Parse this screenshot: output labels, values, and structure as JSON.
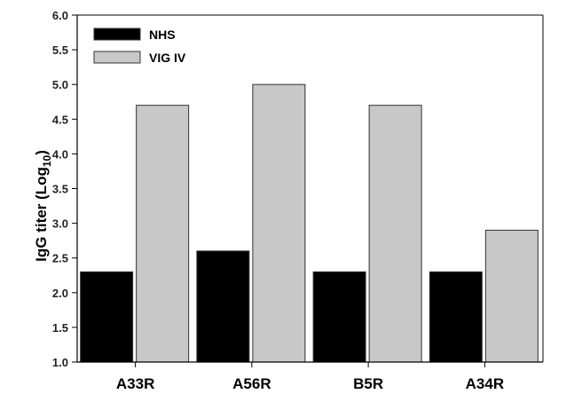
{
  "chart_data": {
    "type": "bar",
    "categories": [
      "A33R",
      "A56R",
      "B5R",
      "A34R"
    ],
    "series": [
      {
        "name": "NHS",
        "values": [
          2.3,
          2.6,
          2.3,
          2.3
        ],
        "color": "#000000"
      },
      {
        "name": "VIG IV",
        "values": [
          4.7,
          5.0,
          4.7,
          2.9
        ],
        "color": "#c8c8c8"
      }
    ],
    "ylabel_main": "IgG titer (Log",
    "ylabel_sub": "10",
    "ylabel_end": ")",
    "xlabel": "",
    "ylim": [
      1.0,
      6.0
    ],
    "yticks": [
      "1.0",
      "1.5",
      "2.0",
      "2.5",
      "3.0",
      "3.5",
      "4.0",
      "4.5",
      "5.0",
      "5.5",
      "6.0"
    ],
    "legend_position": "top-left",
    "grid": false
  }
}
